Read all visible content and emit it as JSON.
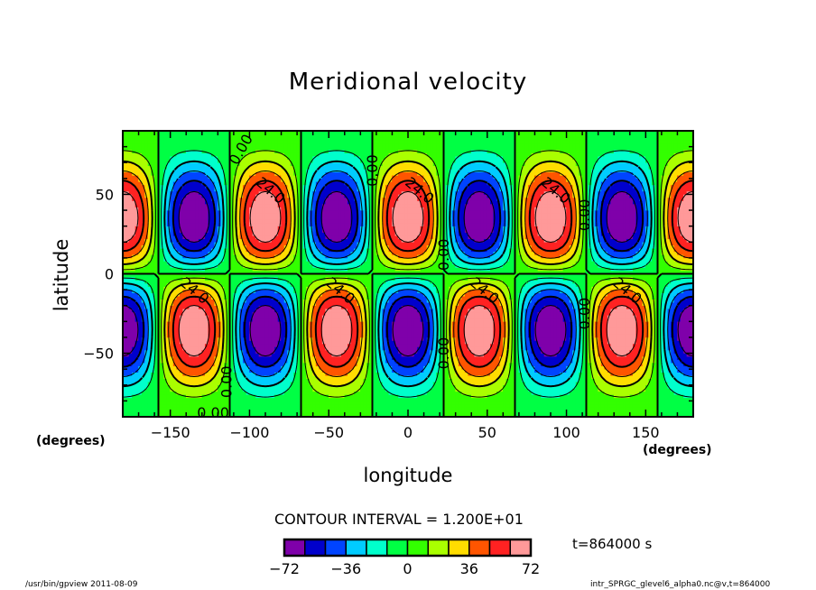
{
  "chart_data": {
    "type": "heatmap",
    "title": "Meridional velocity",
    "xlabel": "longitude",
    "ylabel": "latitude",
    "xunit": "(degrees)",
    "yunit": "(degrees)",
    "xlim": [
      -180,
      180
    ],
    "ylim": [
      -90,
      90
    ],
    "xticks": [
      -150,
      -100,
      -50,
      0,
      50,
      100,
      150
    ],
    "yticks": [
      -50,
      0,
      50
    ],
    "contour_interval_text": "CONTOUR INTERVAL = 1.200E+01",
    "levels": [
      -72,
      -60,
      -48,
      -36,
      -24,
      -12,
      0,
      12,
      24,
      36,
      48,
      60,
      72
    ],
    "colorbar_ticks": [
      "-72",
      "-36",
      "0",
      "36",
      "72"
    ],
    "colors": [
      "#7f00aa",
      "#0000cc",
      "#0044ff",
      "#00ccff",
      "#00ffcc",
      "#00ff44",
      "#33ff00",
      "#aaff00",
      "#ffdd00",
      "#ff5500",
      "#ff2222",
      "#ff9999"
    ],
    "field": {
      "zonal_wavenumber": 4,
      "peak_latitude": 35,
      "max": 74,
      "min": -74,
      "extrema": [
        {
          "lon": -180,
          "lat": 35,
          "sign": "+"
        },
        {
          "lon": -135,
          "lat": 35,
          "sign": "-"
        },
        {
          "lon": -90,
          "lat": 35,
          "sign": "+"
        },
        {
          "lon": -45,
          "lat": 35,
          "sign": "-"
        },
        {
          "lon": 0,
          "lat": 35,
          "sign": "+"
        },
        {
          "lon": 45,
          "lat": 35,
          "sign": "-"
        },
        {
          "lon": 90,
          "lat": 35,
          "sign": "+"
        },
        {
          "lon": 135,
          "lat": 35,
          "sign": "-"
        },
        {
          "lon": 180,
          "lat": 35,
          "sign": "+"
        },
        {
          "lon": -180,
          "lat": -35,
          "sign": "-"
        },
        {
          "lon": -135,
          "lat": -35,
          "sign": "+"
        },
        {
          "lon": -90,
          "lat": -35,
          "sign": "-"
        },
        {
          "lon": -45,
          "lat": -35,
          "sign": "+"
        },
        {
          "lon": 0,
          "lat": -35,
          "sign": "-"
        },
        {
          "lon": 45,
          "lat": -35,
          "sign": "+"
        },
        {
          "lon": 90,
          "lat": -35,
          "sign": "-"
        },
        {
          "lon": 135,
          "lat": -35,
          "sign": "+"
        },
        {
          "lon": 180,
          "lat": -35,
          "sign": "-"
        }
      ]
    },
    "contour_labels": [
      {
        "text": "0.00",
        "lon": -105,
        "lat": 78,
        "rot": -60
      },
      {
        "text": "24.0",
        "lon": -87,
        "lat": 52,
        "rot": 40
      },
      {
        "text": "0.00",
        "lon": -22,
        "lat": 65,
        "rot": -90
      },
      {
        "text": "24.0",
        "lon": 7,
        "lat": 52,
        "rot": 40
      },
      {
        "text": "24.0",
        "lon": 93,
        "lat": 52,
        "rot": 40
      },
      {
        "text": "0.00",
        "lon": 112,
        "lat": 37,
        "rot": -90
      },
      {
        "text": "0.00",
        "lon": 23,
        "lat": 12,
        "rot": -90
      },
      {
        "text": "24.0",
        "lon": -135,
        "lat": -11,
        "rot": 40
      },
      {
        "text": "24.0",
        "lon": -43,
        "lat": -11,
        "rot": 40
      },
      {
        "text": "24.0",
        "lon": 48,
        "lat": -11,
        "rot": 40
      },
      {
        "text": "24.0",
        "lon": 138,
        "lat": -11,
        "rot": 40
      },
      {
        "text": "0.00",
        "lon": 112,
        "lat": -25,
        "rot": -90
      },
      {
        "text": "0.00",
        "lon": 23,
        "lat": -50,
        "rot": -90
      },
      {
        "text": "0.00",
        "lon": -114,
        "lat": -68,
        "rot": -90
      },
      {
        "text": "0.00",
        "lon": -123,
        "lat": -88,
        "rot": 0
      }
    ]
  },
  "time_label": "t=864000 s",
  "footer": {
    "left": "/usr/bin/gpview  2011-08-09",
    "right": "intr_SPRGC_glevel6_alpha0.nc@v,t=864000"
  }
}
